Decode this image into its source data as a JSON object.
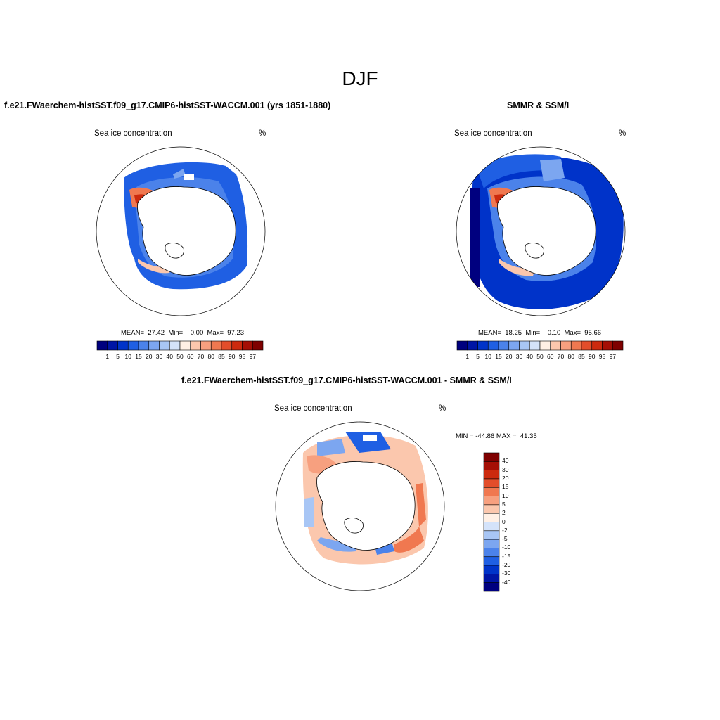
{
  "figure": {
    "title": "DJF",
    "panels": [
      {
        "title": "f.e21.FWaerchem-histSST.f09_g17.CMIP6-histSST-WACCM.001 (yrs 1851-1880)",
        "left_label": "Sea ice concentration",
        "right_label": "%",
        "stats": "MEAN=  27.42  Min=    0.00  Max=  97.23"
      },
      {
        "title": "SMMR & SSM/I",
        "left_label": "Sea ice concentration",
        "right_label": "%",
        "stats": "MEAN=  18.25  Min=    0.10  Max=  95.66"
      },
      {
        "title": "f.e21.FWaerchem-histSST.f09_g17.CMIP6-histSST-WACCM.001 - SMMR & SSM/I",
        "left_label": "Sea ice concentration",
        "right_label": "%",
        "stats": "MIN = -44.86 MAX =  41.35"
      }
    ],
    "colorbar_abs": {
      "ticks": [
        "1",
        "5",
        "10",
        "15",
        "20",
        "30",
        "40",
        "50",
        "60",
        "70",
        "80",
        "85",
        "90",
        "95",
        "97"
      ],
      "colors": [
        "#00007f",
        "#0015a5",
        "#0033c9",
        "#1f5fe3",
        "#4b82ea",
        "#7ca6f0",
        "#a8c6f5",
        "#d4e3fa",
        "#fff0e5",
        "#fbc7ad",
        "#f7a07f",
        "#f07850",
        "#e34d2a",
        "#cc2a0e",
        "#a50f05",
        "#7f0000"
      ]
    },
    "colorbar_diff": {
      "ticks": [
        "40",
        "30",
        "20",
        "15",
        "10",
        "5",
        "2",
        "0",
        "-2",
        "-5",
        "-10",
        "-15",
        "-20",
        "-30",
        "-40"
      ],
      "colors": [
        "#7f0000",
        "#a50f05",
        "#cc2a0e",
        "#e34d2a",
        "#f07850",
        "#f7a07f",
        "#fbc7ad",
        "#fff0e5",
        "#d4e3fa",
        "#a8c6f5",
        "#7ca6f0",
        "#4b82ea",
        "#1f5fe3",
        "#0033c9",
        "#0015a5",
        "#00007f"
      ]
    }
  }
}
